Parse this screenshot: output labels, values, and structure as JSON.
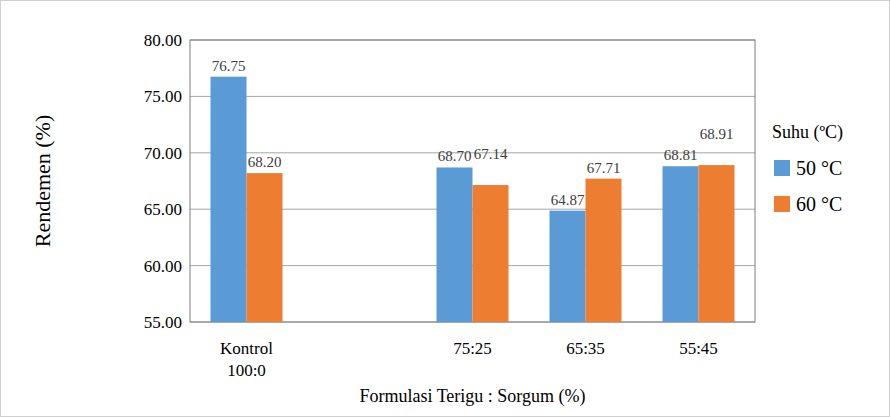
{
  "chart_data": {
    "type": "bar",
    "categories": [
      "Kontrol\n100:0",
      null,
      "75:25",
      "65:35",
      "55:45"
    ],
    "series": [
      {
        "name": "50 °C",
        "color": "#5b9bd5",
        "values": [
          76.75,
          null,
          68.7,
          64.87,
          68.81
        ],
        "value_labels": [
          "76.75",
          null,
          "68.70",
          "64.87",
          "68.81"
        ]
      },
      {
        "name": "60 °C",
        "color": "#ed7d31",
        "values": [
          68.2,
          null,
          67.14,
          67.71,
          68.91
        ],
        "value_labels": [
          "68.20",
          null,
          "67.14",
          "67.71",
          "68.91"
        ]
      }
    ],
    "y_label": "Rendemen (%)",
    "x_label": "Formulasi Terigu : Sorgum (%)",
    "legend_title": "Suhu (ºC)",
    "ylim": [
      55,
      80
    ],
    "yticks": [
      {
        "value": 55,
        "label": "55.00"
      },
      {
        "value": 60,
        "label": "60.00"
      },
      {
        "value": 65,
        "label": "65.00"
      },
      {
        "value": 70,
        "label": "70.00"
      },
      {
        "value": 75,
        "label": "75.00"
      },
      {
        "value": 80,
        "label": "80.00"
      }
    ],
    "grid": true,
    "legend": "right",
    "data_labels": true
  }
}
